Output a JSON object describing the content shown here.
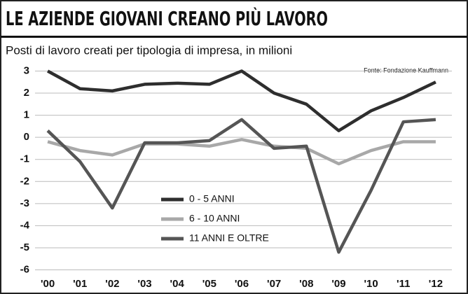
{
  "chart_data": {
    "type": "line",
    "title": "LE AZIENDE GIOVANI CREANO PIÙ LAVORO",
    "subtitle": "Posti di lavoro creati per tipologia di impresa, in milioni",
    "source": "Fonte: Fondazione Kauffmann",
    "categories": [
      "'00",
      "'01",
      "'02",
      "'03",
      "'04",
      "'05",
      "'06",
      "'07",
      "'08",
      "'09",
      "'10",
      "'11",
      "'12"
    ],
    "series": [
      {
        "name": "0 - 5 ANNI",
        "color": "#2e2e2e",
        "values": [
          3.0,
          2.2,
          2.1,
          2.4,
          2.45,
          2.4,
          3.0,
          2.0,
          1.5,
          0.3,
          1.2,
          1.8,
          2.5
        ]
      },
      {
        "name": "6 - 10 ANNI",
        "color": "#a8a8a8",
        "values": [
          -0.2,
          -0.6,
          -0.8,
          -0.3,
          -0.3,
          -0.4,
          -0.1,
          -0.4,
          -0.5,
          -1.2,
          -0.6,
          -0.2,
          -0.2
        ]
      },
      {
        "name": "11 ANNI E OLTRE",
        "color": "#555555",
        "values": [
          0.3,
          -1.1,
          -3.2,
          -0.25,
          -0.25,
          -0.15,
          0.8,
          -0.5,
          -0.4,
          -5.2,
          -2.4,
          0.7,
          0.8
        ]
      }
    ],
    "ylim": [
      -6.3,
      3.3
    ],
    "yticks": [
      3,
      2,
      1,
      0,
      -1,
      -2,
      -3,
      -4,
      -5,
      -6
    ],
    "grid": true
  }
}
